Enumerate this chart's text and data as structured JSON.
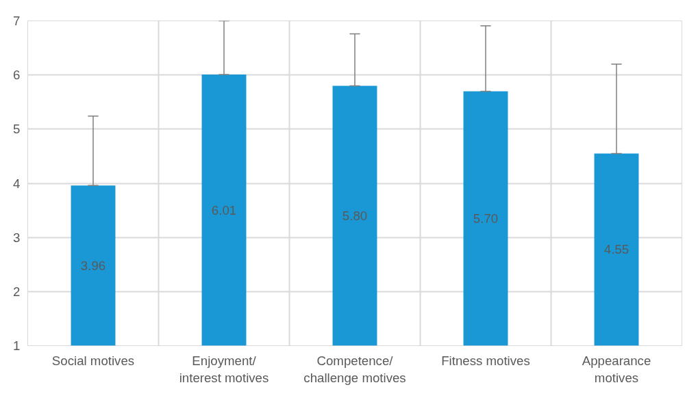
{
  "chart_data": {
    "type": "bar",
    "categories": [
      "Social motives",
      "Enjoyment/\ninterest motives",
      "Competence/\nchallenge motives",
      "Fitness motives",
      "Appearance\nmotives"
    ],
    "values": [
      3.96,
      6.01,
      5.8,
      5.7,
      4.55
    ],
    "color": "#1a98d5",
    "errors": [
      [
        3.96,
        5.24
      ],
      [
        6.01,
        7.0
      ],
      [
        5.8,
        6.76
      ],
      [
        5.7,
        6.91
      ],
      [
        4.55,
        6.2
      ]
    ],
    "value_labels": [
      "3.96",
      "6.01",
      "5.80",
      "5.70",
      "4.55"
    ],
    "ylim": [
      1,
      7
    ],
    "yticks": [
      1,
      2,
      3,
      4,
      5,
      6,
      7
    ],
    "grid": true
  }
}
